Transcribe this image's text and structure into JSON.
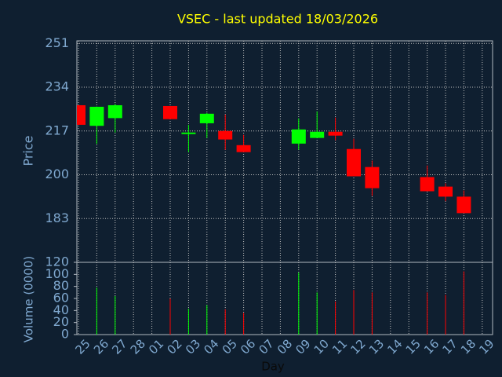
{
  "chart_data": {
    "type": "candlestick",
    "title": "VSEC - last updated 18/03/2026",
    "x_label": "Day",
    "y_label": "Price",
    "y2_label": "Volume (0000)",
    "categories": [
      "25",
      "26",
      "27",
      "28",
      "01",
      "02",
      "03",
      "04",
      "05",
      "06",
      "07",
      "08",
      "09",
      "10",
      "11",
      "12",
      "13",
      "14",
      "15",
      "16",
      "17",
      "18",
      "19"
    ],
    "open": [
      227,
      219,
      222,
      null,
      null,
      226.7,
      215.8,
      220,
      217,
      211.5,
      null,
      null,
      212.1,
      214.3,
      216.7,
      210,
      203,
      null,
      null,
      199.1,
      195.4,
      191.5,
      null
    ],
    "high": [
      227,
      226.5,
      227.5,
      null,
      null,
      226.7,
      219.4,
      224,
      223.4,
      215.5,
      null,
      null,
      221.9,
      224.6,
      222.2,
      214,
      205.5,
      null,
      null,
      203.6,
      196.7,
      193.9,
      null
    ],
    "low": [
      219.4,
      212,
      216.4,
      null,
      null,
      221.6,
      208.8,
      214.3,
      209.7,
      208.8,
      null,
      null,
      209.7,
      214.3,
      213.4,
      199.4,
      191.8,
      null,
      null,
      193.6,
      189.7,
      185.1,
      null
    ],
    "close": [
      219.4,
      226.4,
      227,
      null,
      null,
      221.6,
      216.4,
      223.7,
      213.7,
      208.8,
      null,
      null,
      217.6,
      216.7,
      215.2,
      199.4,
      194.8,
      null,
      null,
      193.6,
      191.5,
      185.1,
      null
    ],
    "volume": [
      null,
      78,
      64,
      null,
      null,
      60,
      43,
      49,
      42,
      36,
      null,
      null,
      103,
      70,
      55,
      74,
      70,
      null,
      null,
      70,
      66,
      105,
      null
    ],
    "up_color": "#00ff00",
    "down_color": "#ff0000",
    "ylim": [
      166,
      252
    ],
    "yticks": [
      183,
      200,
      217,
      234,
      251
    ],
    "y2lim": [
      0,
      120
    ],
    "y2ticks": [
      0,
      20,
      40,
      60,
      80,
      100,
      120
    ],
    "grid": true
  }
}
